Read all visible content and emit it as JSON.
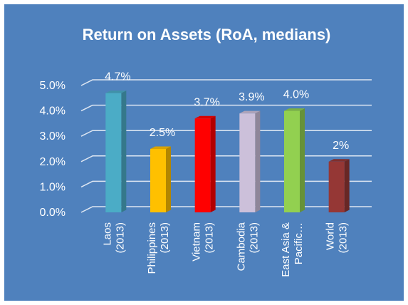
{
  "chart_data": {
    "type": "bar",
    "title": "Return on Assets (RoA, medians)",
    "categories": [
      "Laos (2013)",
      "Philippines (2013)",
      "Vietnam (2013)",
      "Cambodia (2013)",
      "East Asia & Pacific…",
      "World (2013)"
    ],
    "values": [
      4.7,
      2.5,
      3.7,
      3.9,
      4.0,
      2
    ],
    "value_labels": [
      "4.7%",
      "2.5%",
      "3.7%",
      "3.9%",
      "4.0%",
      "2%"
    ],
    "colors": [
      "#4bacc6",
      "#ffc000",
      "#ff0000",
      "#ccc0da",
      "#92d050",
      "#953735"
    ],
    "ylim": [
      0,
      5
    ],
    "yticks": [
      {
        "value": 0,
        "label": "0.0%"
      },
      {
        "value": 1,
        "label": "1.0%"
      },
      {
        "value": 2,
        "label": "2.0%"
      },
      {
        "value": 3,
        "label": "3.0%"
      },
      {
        "value": 4,
        "label": "4.0%"
      },
      {
        "value": 5,
        "label": "5.0%"
      }
    ],
    "grid": true
  }
}
